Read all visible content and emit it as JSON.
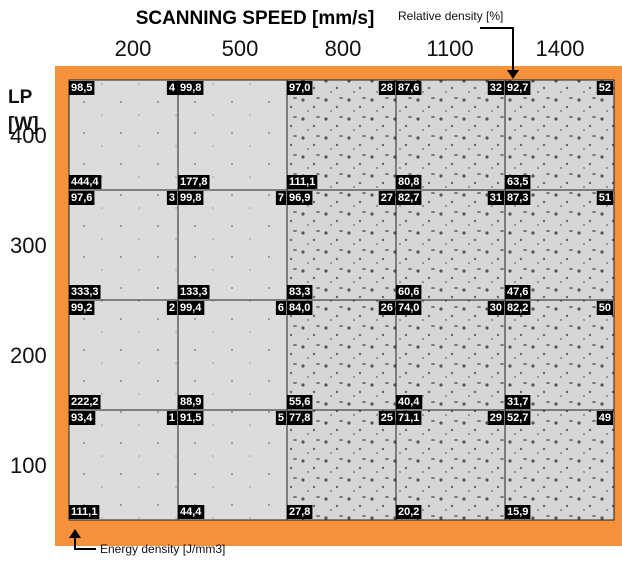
{
  "header": {
    "title": "SCANNING SPEED [mm/s]",
    "row_title": "LP",
    "row_unit": "[W]"
  },
  "columns": [
    "200",
    "500",
    "800",
    "1100",
    "1400"
  ],
  "rows": [
    {
      "label": "400",
      "cells": [
        {
          "density": "98,5",
          "sample": "4",
          "energy": "444,4"
        },
        {
          "density": "99,8",
          "sample": null,
          "energy": "177,8"
        },
        {
          "density": "97,0",
          "sample": "28",
          "energy": "111,1"
        },
        {
          "density": "87,6",
          "sample": "32",
          "energy": "80,8"
        },
        {
          "density": "92,7",
          "sample": "52",
          "energy": "63,5"
        }
      ]
    },
    {
      "label": "300",
      "cells": [
        {
          "density": "97,6",
          "sample": "3",
          "energy": "333,3"
        },
        {
          "density": "99,8",
          "sample": "7",
          "energy": "133,3"
        },
        {
          "density": "96,9",
          "sample": "27",
          "energy": "83,3"
        },
        {
          "density": "82,7",
          "sample": "31",
          "energy": "60,6"
        },
        {
          "density": "87,3",
          "sample": "51",
          "energy": "47,6"
        }
      ]
    },
    {
      "label": "200",
      "cells": [
        {
          "density": "99,2",
          "sample": "2",
          "energy": "222,2"
        },
        {
          "density": "99,4",
          "sample": "6",
          "energy": "88,9"
        },
        {
          "density": "84,0",
          "sample": "26",
          "energy": "55,6"
        },
        {
          "density": "74,0",
          "sample": "30",
          "energy": "40,4"
        },
        {
          "density": "82,2",
          "sample": "50",
          "energy": "31,7"
        }
      ]
    },
    {
      "label": "100",
      "cells": [
        {
          "density": "93,4",
          "sample": "1",
          "energy": "111,1"
        },
        {
          "density": "91,5",
          "sample": "5",
          "energy": "44,4"
        },
        {
          "density": "77,8",
          "sample": "25",
          "energy": "27,8"
        },
        {
          "density": "71,1",
          "sample": "29",
          "energy": "20,2"
        },
        {
          "density": "52,7",
          "sample": "49",
          "energy": "15,9"
        }
      ]
    }
  ],
  "annotations": {
    "relative_density": "Relative density [%]",
    "energy_density": "Energy density [J/mm3]"
  }
}
